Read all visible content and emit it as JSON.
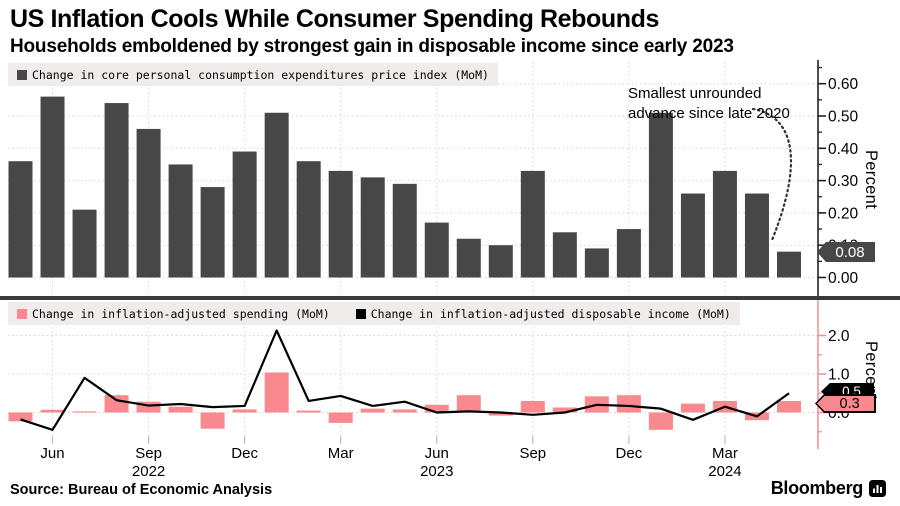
{
  "header": {
    "title": "US Inflation Cools While Consumer Spending Rebounds",
    "subtitle": "Households emboldened by strongest gain in disposable income since early 2023"
  },
  "colors": {
    "bar_dark": "#474747",
    "bar_pink": "#f8898e",
    "legend_bg": "#efeceb",
    "gridline": "#d7d4d2",
    "divider": "#3a3a3a",
    "axis_dark": "#222222",
    "axis_pink": "#f49297",
    "x_tick": "#c4c1bf",
    "annotation_arrow": "#333333"
  },
  "top_panel": {
    "legend": [
      {
        "marker_color": "#474747",
        "label": "Change in core personal consumption expenditures price index (MoM)"
      }
    ],
    "axis_label": "Percent",
    "annotation": "Smallest unrounded\nadvance since late 2020",
    "end_badge": {
      "label": "0.08",
      "fill": "#474747",
      "text_color": "#ffffff"
    }
  },
  "bottom_panel": {
    "legend": [
      {
        "marker_color": "#f8898e",
        "label": "Change in inflation-adjusted spending (MoM)"
      },
      {
        "marker_color": "#000000",
        "label": "Change in inflation-adjusted disposable income (MoM)"
      }
    ],
    "axis_label": "Percent",
    "end_badges": [
      {
        "label": "0.5",
        "fill": "#000000",
        "text_color": "#ffffff"
      },
      {
        "label": "0.3",
        "fill": "#f8898e",
        "text_color": "#000000",
        "border": "#000000"
      }
    ]
  },
  "x_axis": {
    "ticks": [
      {
        "index": 1,
        "label": "Jun",
        "year": ""
      },
      {
        "index": 4,
        "label": "Sep",
        "year": "2022"
      },
      {
        "index": 7,
        "label": "Dec",
        "year": ""
      },
      {
        "index": 10,
        "label": "Mar",
        "year": ""
      },
      {
        "index": 13,
        "label": "Jun",
        "year": "2023"
      },
      {
        "index": 16,
        "label": "Sep",
        "year": ""
      },
      {
        "index": 19,
        "label": "Dec",
        "year": ""
      },
      {
        "index": 22,
        "label": "Mar",
        "year": "2024"
      }
    ]
  },
  "footer": {
    "source": "Source: Bureau of Economic Analysis",
    "brand": "Bloomberg"
  },
  "chart_data": [
    {
      "type": "bar",
      "title": "Change in core personal consumption expenditures price index (MoM)",
      "ylabel": "Percent",
      "x": [
        "May 2022",
        "Jun 2022",
        "Jul 2022",
        "Aug 2022",
        "Sep 2022",
        "Oct 2022",
        "Nov 2022",
        "Dec 2022",
        "Jan 2023",
        "Feb 2023",
        "Mar 2023",
        "Apr 2023",
        "May 2023",
        "Jun 2023",
        "Jul 2023",
        "Aug 2023",
        "Sep 2023",
        "Oct 2023",
        "Nov 2023",
        "Dec 2023",
        "Jan 2024",
        "Feb 2024",
        "Mar 2024",
        "Apr 2024",
        "May 2024"
      ],
      "values": [
        0.36,
        0.56,
        0.21,
        0.54,
        0.46,
        0.35,
        0.28,
        0.39,
        0.51,
        0.36,
        0.33,
        0.31,
        0.29,
        0.17,
        0.12,
        0.1,
        0.33,
        0.14,
        0.09,
        0.15,
        0.51,
        0.26,
        0.33,
        0.26,
        0.08
      ],
      "ylim": [
        -0.02,
        0.67
      ],
      "grid": true,
      "legend_position": "top-left",
      "yticks": [
        {
          "value": 0.0,
          "label": "0.00"
        },
        {
          "value": 0.1,
          "label": "0.10"
        },
        {
          "value": 0.2,
          "label": "0.20"
        },
        {
          "value": 0.3,
          "label": "0.30"
        },
        {
          "value": 0.4,
          "label": "0.40"
        },
        {
          "value": 0.5,
          "label": "0.50"
        },
        {
          "value": 0.6,
          "label": "0.60"
        }
      ],
      "minor_ticks": [
        0.05,
        0.15,
        0.25,
        0.35,
        0.45,
        0.55,
        0.65
      ],
      "annotation": {
        "text": "Smallest unrounded advance since late 2020",
        "points_to_x": "May 2024"
      },
      "end_value_label": "0.08"
    },
    {
      "type": "bar+line",
      "ylabel": "Percent",
      "x": [
        "May 2022",
        "Jun 2022",
        "Jul 2022",
        "Aug 2022",
        "Sep 2022",
        "Oct 2022",
        "Nov 2022",
        "Dec 2022",
        "Jan 2023",
        "Feb 2023",
        "Mar 2023",
        "Apr 2023",
        "May 2023",
        "Jun 2023",
        "Jul 2023",
        "Aug 2023",
        "Sep 2023",
        "Oct 2023",
        "Nov 2023",
        "Dec 2023",
        "Jan 2024",
        "Feb 2024",
        "Mar 2024",
        "Apr 2024",
        "May 2024"
      ],
      "series": [
        {
          "name": "Change in inflation-adjusted spending (MoM)",
          "type": "bar",
          "color": "#f8898e",
          "values": [
            -0.23,
            0.07,
            0.03,
            0.45,
            0.28,
            0.15,
            -0.42,
            0.08,
            1.04,
            0.05,
            -0.27,
            0.1,
            0.08,
            0.2,
            0.45,
            -0.08,
            0.3,
            0.13,
            0.42,
            0.45,
            -0.45,
            0.23,
            0.3,
            -0.2,
            0.3
          ]
        },
        {
          "name": "Change in inflation-adjusted disposable income (MoM)",
          "type": "line",
          "color": "#000000",
          "values": [
            -0.18,
            -0.45,
            0.9,
            0.32,
            0.18,
            0.22,
            0.14,
            0.17,
            2.13,
            0.3,
            0.43,
            0.17,
            0.28,
            0.0,
            0.03,
            0.0,
            -0.06,
            0.0,
            0.2,
            0.17,
            0.1,
            -0.19,
            0.15,
            -0.1,
            0.5
          ]
        }
      ],
      "ylim": [
        -0.75,
        2.25
      ],
      "grid": true,
      "yticks": [
        {
          "value": 0.0,
          "label": "0.0"
        },
        {
          "value": 1.0,
          "label": "1.0"
        },
        {
          "value": 2.0,
          "label": "2.0"
        }
      ],
      "minor_ticks": [
        -0.5,
        0.5,
        1.5
      ],
      "end_value_labels": [
        {
          "series": "Change in inflation-adjusted disposable income (MoM)",
          "label": "0.5"
        },
        {
          "series": "Change in inflation-adjusted spending (MoM)",
          "label": "0.3"
        }
      ]
    }
  ]
}
